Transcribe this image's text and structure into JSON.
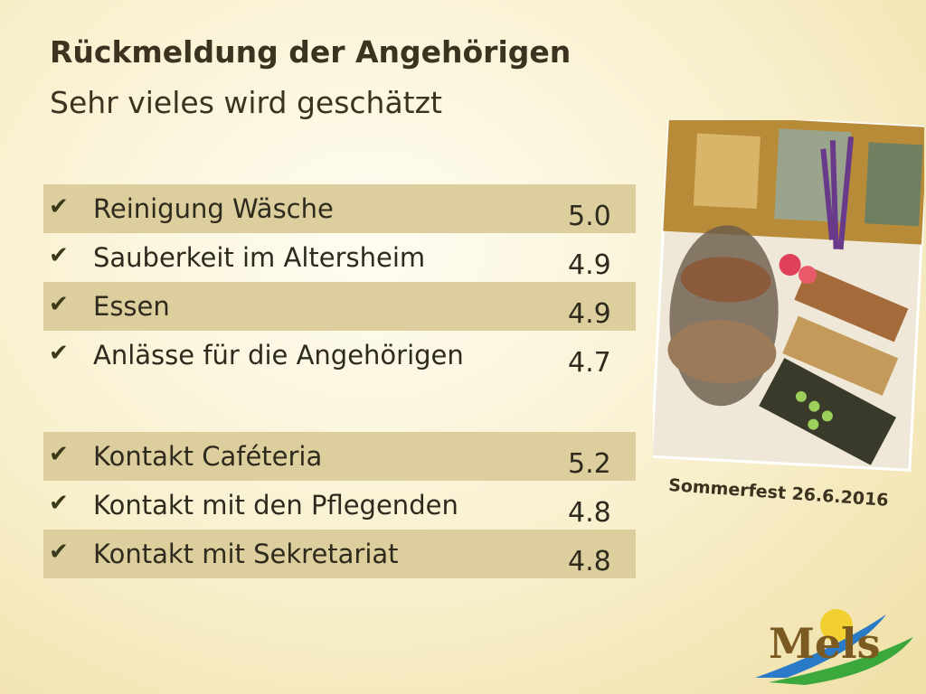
{
  "header": {
    "title": "Rückmeldung der Angehörigen",
    "subtitle": "Sehr vieles wird geschätzt"
  },
  "groups": [
    [
      {
        "label": "Reinigung Wäsche",
        "value": "5.0"
      },
      {
        "label": "Sauberkeit im Altersheim",
        "value": "4.9"
      },
      {
        "label": "Essen",
        "value": "4.9"
      },
      {
        "label": "Anlässe für die Angehörigen",
        "value": "4.7"
      }
    ],
    [
      {
        "label": "Kontakt Caféteria",
        "value": "5.2"
      },
      {
        "label": "Kontakt mit den Pflegenden",
        "value": "4.8"
      },
      {
        "label": "Kontakt mit Sekretariat",
        "value": "4.8"
      }
    ]
  ],
  "photo": {
    "caption": "Sommerfest 26.6.2016"
  },
  "logo": {
    "text": "Mels"
  }
}
